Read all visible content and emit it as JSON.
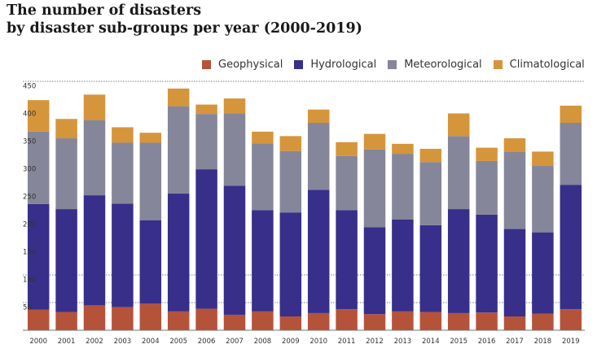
{
  "chart_data": {
    "type": "bar",
    "stacked": true,
    "title_line1": "The number of disasters",
    "title_line2": "by disaster sub-groups per year (2000-2019)",
    "categories": [
      "2000",
      "2001",
      "2002",
      "2003",
      "2004",
      "2005",
      "2006",
      "2007",
      "2008",
      "2009",
      "2010",
      "2011",
      "2012",
      "2013",
      "2014",
      "2015",
      "2016",
      "2017",
      "2018",
      "2019"
    ],
    "series": [
      {
        "name": "Geophysical",
        "color": "#b5533a",
        "values": [
          37,
          33,
          45,
          42,
          48,
          34,
          39,
          28,
          34,
          25,
          31,
          38,
          29,
          34,
          33,
          31,
          32,
          25,
          30,
          38
        ]
      },
      {
        "name": "Hydrological",
        "color": "#372f8a",
        "values": [
          191,
          186,
          199,
          187,
          151,
          213,
          252,
          233,
          183,
          188,
          223,
          179,
          157,
          166,
          157,
          188,
          177,
          158,
          147,
          225
        ]
      },
      {
        "name": "Meteorological",
        "color": "#86869a",
        "values": [
          131,
          128,
          136,
          110,
          140,
          158,
          100,
          131,
          121,
          111,
          121,
          98,
          141,
          119,
          114,
          132,
          97,
          140,
          120,
          112
        ]
      },
      {
        "name": "Climatological",
        "color": "#d5953b",
        "values": [
          57,
          35,
          46,
          28,
          18,
          32,
          17,
          27,
          21,
          27,
          24,
          25,
          28,
          18,
          24,
          41,
          24,
          24,
          26,
          31
        ]
      }
    ],
    "y_ticks": [
      "50",
      "100",
      "150",
      "200",
      "250",
      "300",
      "350",
      "400",
      "450"
    ],
    "ylim": [
      0,
      450
    ],
    "gridlines": [
      50,
      100,
      450
    ],
    "legend_position": "top-right"
  }
}
